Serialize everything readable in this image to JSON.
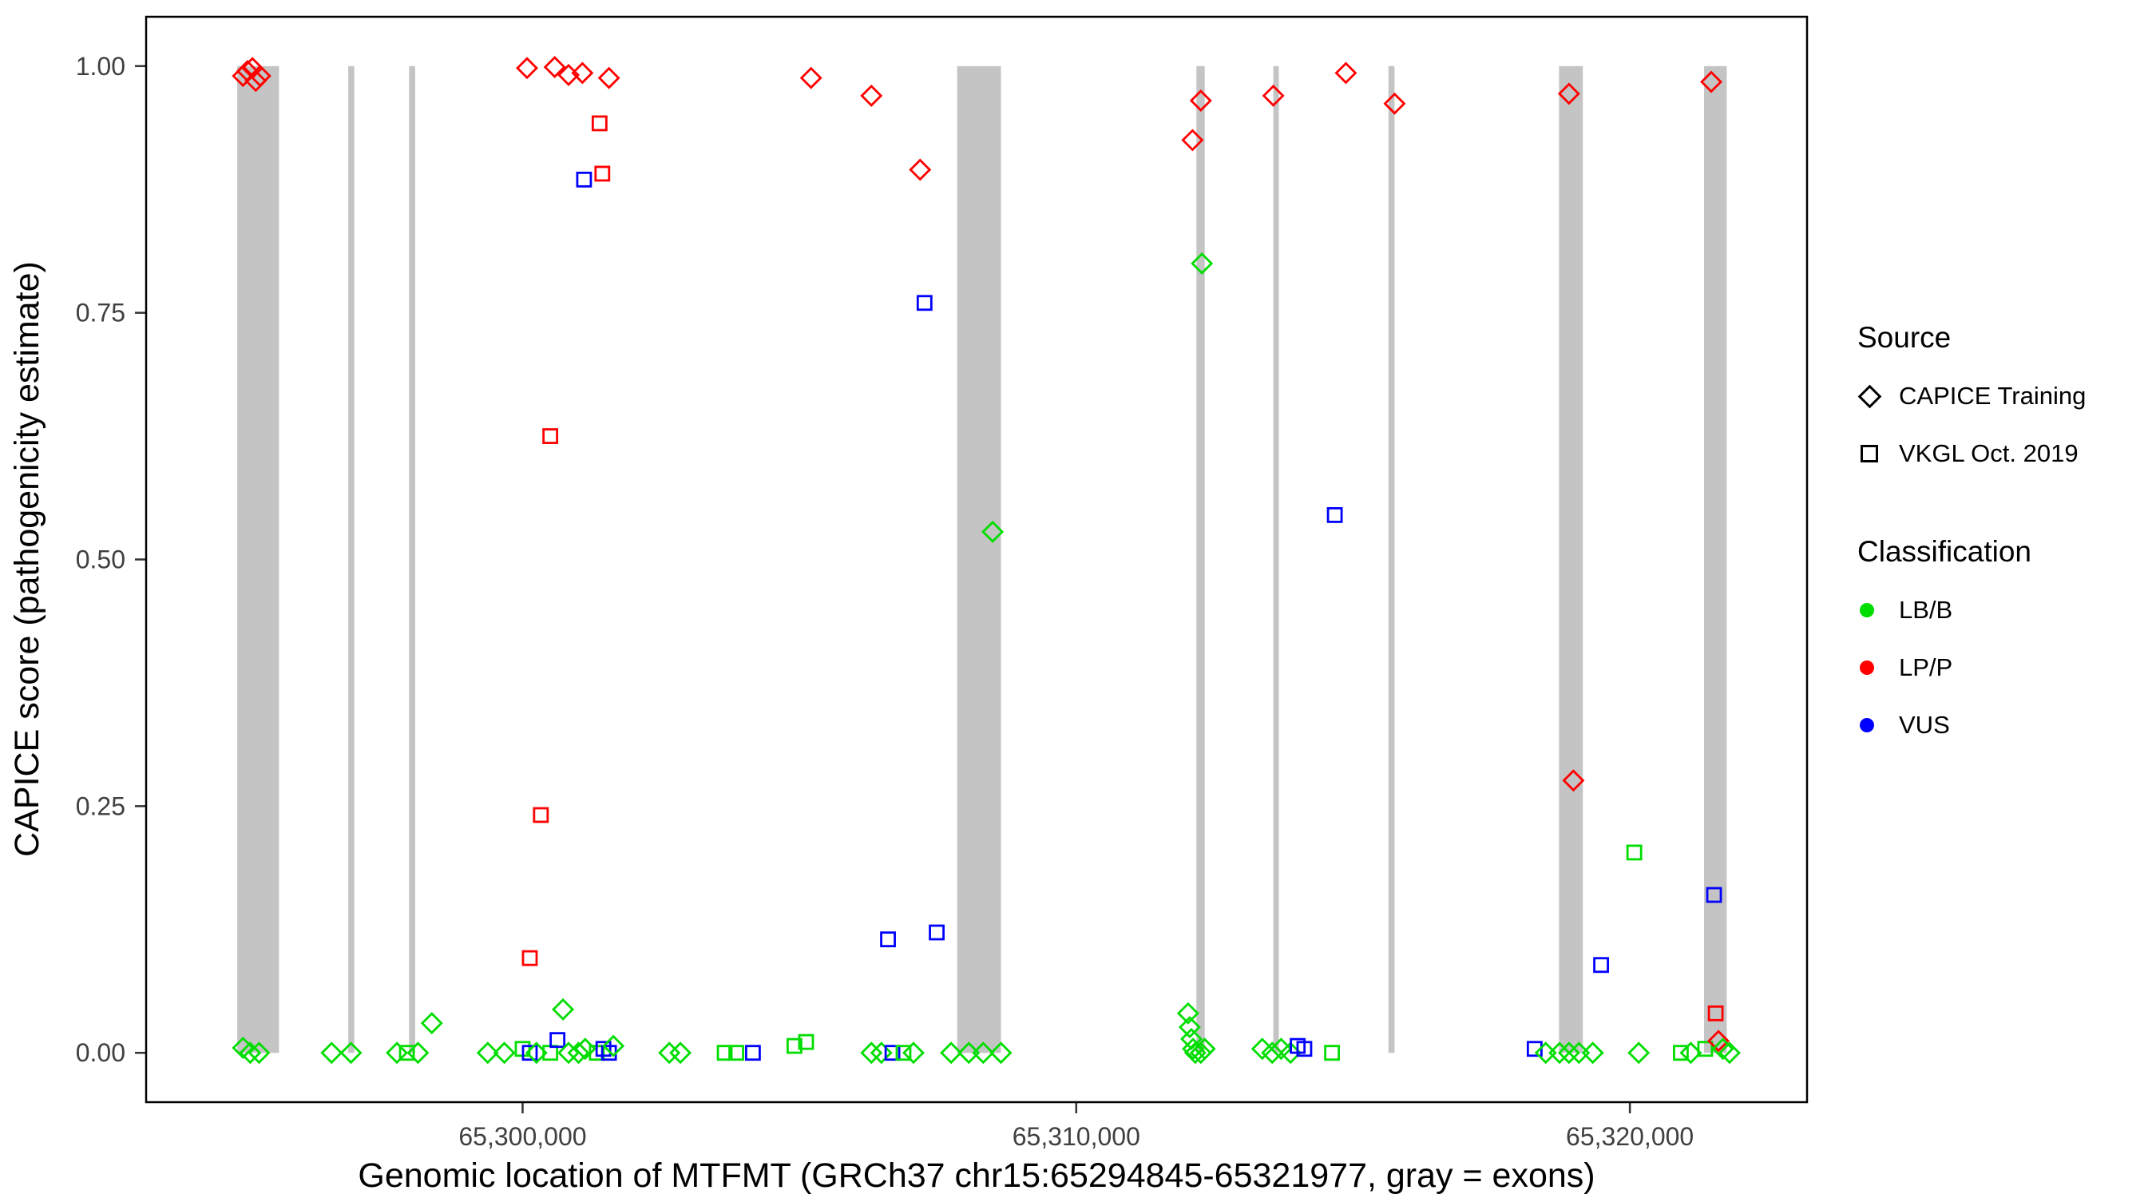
{
  "chart_data": {
    "type": "scatter",
    "title": "",
    "xlabel": "Genomic location of MTFMT (GRCh37 chr15:65294845-65321977, gray = exons)",
    "ylabel": "CAPICE score (pathogenicity estimate)",
    "xlim": [
      65293200,
      65323200
    ],
    "ylim": [
      -0.05,
      1.05
    ],
    "grid": false,
    "x_ticks": [
      {
        "value": 65300000,
        "label": "65,300,000"
      },
      {
        "value": 65310000,
        "label": "65,310,000"
      },
      {
        "value": 65320000,
        "label": "65,320,000"
      }
    ],
    "y_ticks": [
      {
        "value": 0.0,
        "label": "0.00"
      },
      {
        "value": 0.25,
        "label": "0.25"
      },
      {
        "value": 0.5,
        "label": "0.50"
      },
      {
        "value": 0.75,
        "label": "0.75"
      },
      {
        "value": 1.0,
        "label": "1.00"
      }
    ],
    "exon_color": "#c4c4c4",
    "exons": [
      [
        65294845,
        65295600
      ],
      [
        65296850,
        65296960
      ],
      [
        65297950,
        65298060
      ],
      [
        65307850,
        65308640
      ],
      [
        65312170,
        65312320
      ],
      [
        65313560,
        65313660
      ],
      [
        65315640,
        65315750
      ],
      [
        65318720,
        65319150
      ],
      [
        65321340,
        65321750
      ]
    ],
    "colors": {
      "LB/B": "#00dd00",
      "LP/P": "#ff0000",
      "VUS": "#0000ff"
    },
    "legend": {
      "source": {
        "title": "Source",
        "items": [
          {
            "label": "CAPICE Training",
            "shape": "diamond"
          },
          {
            "label": "VKGL Oct. 2019",
            "shape": "square"
          }
        ]
      },
      "classification": {
        "title": "Classification",
        "items": [
          {
            "label": "LB/B",
            "color": "#00dd00"
          },
          {
            "label": "LP/P",
            "color": "#ff0000"
          },
          {
            "label": "VUS",
            "color": "#0000ff"
          }
        ]
      }
    },
    "points_format": {
      "fields": [
        "pos",
        "score",
        "source",
        "classification"
      ],
      "source_codes": {
        "T": "CAPICE Training (diamond)",
        "V": "VKGL Oct. 2019 (square)"
      }
    },
    "points": [
      [
        65294950,
        0.99,
        "T",
        "LP/P"
      ],
      [
        65295030,
        0.995,
        "T",
        "LP/P"
      ],
      [
        65295120,
        0.998,
        "T",
        "LP/P"
      ],
      [
        65295180,
        0.985,
        "T",
        "LP/P"
      ],
      [
        65295260,
        0.99,
        "T",
        "LP/P"
      ],
      [
        65294950,
        0.005,
        "T",
        "LB/B"
      ],
      [
        65295080,
        0.0,
        "T",
        "LB/B"
      ],
      [
        65295240,
        0.0,
        "T",
        "LB/B"
      ],
      [
        65296550,
        0.0,
        "T",
        "LB/B"
      ],
      [
        65296900,
        0.0,
        "T",
        "LB/B"
      ],
      [
        65297730,
        0.0,
        "T",
        "LB/B"
      ],
      [
        65297910,
        0.0,
        "V",
        "LB/B"
      ],
      [
        65298110,
        0.0,
        "T",
        "LB/B"
      ],
      [
        65298360,
        0.03,
        "T",
        "LB/B"
      ],
      [
        65299370,
        0.0,
        "T",
        "LB/B"
      ],
      [
        65299670,
        0.0,
        "T",
        "LB/B"
      ],
      [
        65300000,
        0.004,
        "V",
        "LB/B"
      ],
      [
        65300080,
        0.998,
        "T",
        "LP/P"
      ],
      [
        65300130,
        0.096,
        "V",
        "LP/P"
      ],
      [
        65300130,
        0.0,
        "V",
        "VUS"
      ],
      [
        65300250,
        0.0,
        "T",
        "LB/B"
      ],
      [
        65300330,
        0.241,
        "V",
        "LP/P"
      ],
      [
        65300500,
        0.625,
        "V",
        "LP/P"
      ],
      [
        65300500,
        0.0,
        "V",
        "LB/B"
      ],
      [
        65300580,
        0.999,
        "T",
        "LP/P"
      ],
      [
        65300630,
        0.013,
        "V",
        "VUS"
      ],
      [
        65300730,
        0.044,
        "T",
        "LB/B"
      ],
      [
        65300830,
        0.991,
        "T",
        "LP/P"
      ],
      [
        65300830,
        0.0,
        "T",
        "LB/B"
      ],
      [
        65301010,
        0.0,
        "T",
        "LB/B"
      ],
      [
        65301080,
        0.993,
        "T",
        "LP/P"
      ],
      [
        65301110,
        0.885,
        "V",
        "VUS"
      ],
      [
        65301130,
        0.004,
        "T",
        "LB/B"
      ],
      [
        65301340,
        0.0,
        "V",
        "LB/B"
      ],
      [
        65301390,
        0.942,
        "V",
        "LP/P"
      ],
      [
        65301440,
        0.891,
        "V",
        "LP/P"
      ],
      [
        65301460,
        0.004,
        "V",
        "VUS"
      ],
      [
        65301560,
        0.988,
        "T",
        "LP/P"
      ],
      [
        65301560,
        0.0,
        "V",
        "VUS"
      ],
      [
        65301640,
        0.007,
        "T",
        "LB/B"
      ],
      [
        65302650,
        0.0,
        "T",
        "LB/B"
      ],
      [
        65302850,
        0.0,
        "T",
        "LB/B"
      ],
      [
        65303650,
        0.0,
        "V",
        "LB/B"
      ],
      [
        65303860,
        0.0,
        "V",
        "LB/B"
      ],
      [
        65304160,
        0.0,
        "V",
        "VUS"
      ],
      [
        65304910,
        0.007,
        "V",
        "LB/B"
      ],
      [
        65305120,
        0.011,
        "V",
        "LB/B"
      ],
      [
        65305210,
        0.988,
        "T",
        "LP/P"
      ],
      [
        65306300,
        0.97,
        "T",
        "LP/P"
      ],
      [
        65306300,
        0.0,
        "T",
        "LB/B"
      ],
      [
        65306480,
        0.0,
        "T",
        "LB/B"
      ],
      [
        65306600,
        0.115,
        "V",
        "VUS"
      ],
      [
        65306680,
        0.0,
        "V",
        "VUS"
      ],
      [
        65306880,
        0.0,
        "V",
        "LB/B"
      ],
      [
        65307060,
        0.0,
        "T",
        "LB/B"
      ],
      [
        65307180,
        0.895,
        "T",
        "LP/P"
      ],
      [
        65307260,
        0.76,
        "V",
        "VUS"
      ],
      [
        65307480,
        0.122,
        "V",
        "VUS"
      ],
      [
        65307740,
        0.0,
        "T",
        "LB/B"
      ],
      [
        65308060,
        0.0,
        "T",
        "LB/B"
      ],
      [
        65308320,
        0.0,
        "T",
        "LB/B"
      ],
      [
        65308490,
        0.528,
        "T",
        "LB/B"
      ],
      [
        65308640,
        0.0,
        "T",
        "LB/B"
      ],
      [
        65312020,
        0.04,
        "T",
        "LB/B"
      ],
      [
        65312050,
        0.026,
        "T",
        "LB/B"
      ],
      [
        65312080,
        0.014,
        "T",
        "LB/B"
      ],
      [
        65312100,
        0.925,
        "T",
        "LP/P"
      ],
      [
        65312110,
        0.004,
        "T",
        "LB/B"
      ],
      [
        65312150,
        0.0,
        "T",
        "LB/B"
      ],
      [
        65312250,
        0.965,
        "T",
        "LP/P"
      ],
      [
        65312250,
        0.0,
        "T",
        "LB/B"
      ],
      [
        65312270,
        0.8,
        "T",
        "LB/B"
      ],
      [
        65312320,
        0.004,
        "T",
        "LB/B"
      ],
      [
        65313360,
        0.004,
        "T",
        "LB/B"
      ],
      [
        65313540,
        0.0,
        "T",
        "LB/B"
      ],
      [
        65313560,
        0.97,
        "T",
        "LP/P"
      ],
      [
        65313700,
        0.004,
        "T",
        "LB/B"
      ],
      [
        65313870,
        0.0,
        "T",
        "LB/B"
      ],
      [
        65314000,
        0.007,
        "V",
        "VUS"
      ],
      [
        65314120,
        0.004,
        "V",
        "VUS"
      ],
      [
        65314620,
        0.0,
        "V",
        "LB/B"
      ],
      [
        65314670,
        0.545,
        "V",
        "VUS"
      ],
      [
        65314870,
        0.993,
        "T",
        "LP/P"
      ],
      [
        65315750,
        0.962,
        "T",
        "LP/P"
      ],
      [
        65318280,
        0.004,
        "V",
        "VUS"
      ],
      [
        65318480,
        0.0,
        "T",
        "LB/B"
      ],
      [
        65318730,
        0.0,
        "T",
        "LB/B"
      ],
      [
        65318900,
        0.972,
        "T",
        "LP/P"
      ],
      [
        65318900,
        0.0,
        "T",
        "LB/B"
      ],
      [
        65318980,
        0.276,
        "T",
        "LP/P"
      ],
      [
        65319080,
        0.0,
        "T",
        "LB/B"
      ],
      [
        65319330,
        0.0,
        "T",
        "LB/B"
      ],
      [
        65319480,
        0.089,
        "V",
        "VUS"
      ],
      [
        65320080,
        0.203,
        "V",
        "LB/B"
      ],
      [
        65320160,
        0.0,
        "T",
        "LB/B"
      ],
      [
        65320920,
        0.0,
        "V",
        "LB/B"
      ],
      [
        65321100,
        0.0,
        "T",
        "LB/B"
      ],
      [
        65321360,
        0.004,
        "V",
        "LB/B"
      ],
      [
        65321470,
        0.984,
        "T",
        "LP/P"
      ],
      [
        65321520,
        0.16,
        "V",
        "VUS"
      ],
      [
        65321550,
        0.04,
        "V",
        "LP/P"
      ],
      [
        65321600,
        0.012,
        "T",
        "LP/P"
      ],
      [
        65321680,
        0.004,
        "T",
        "LB/B"
      ],
      [
        65321800,
        0.0,
        "T",
        "LB/B"
      ]
    ]
  }
}
